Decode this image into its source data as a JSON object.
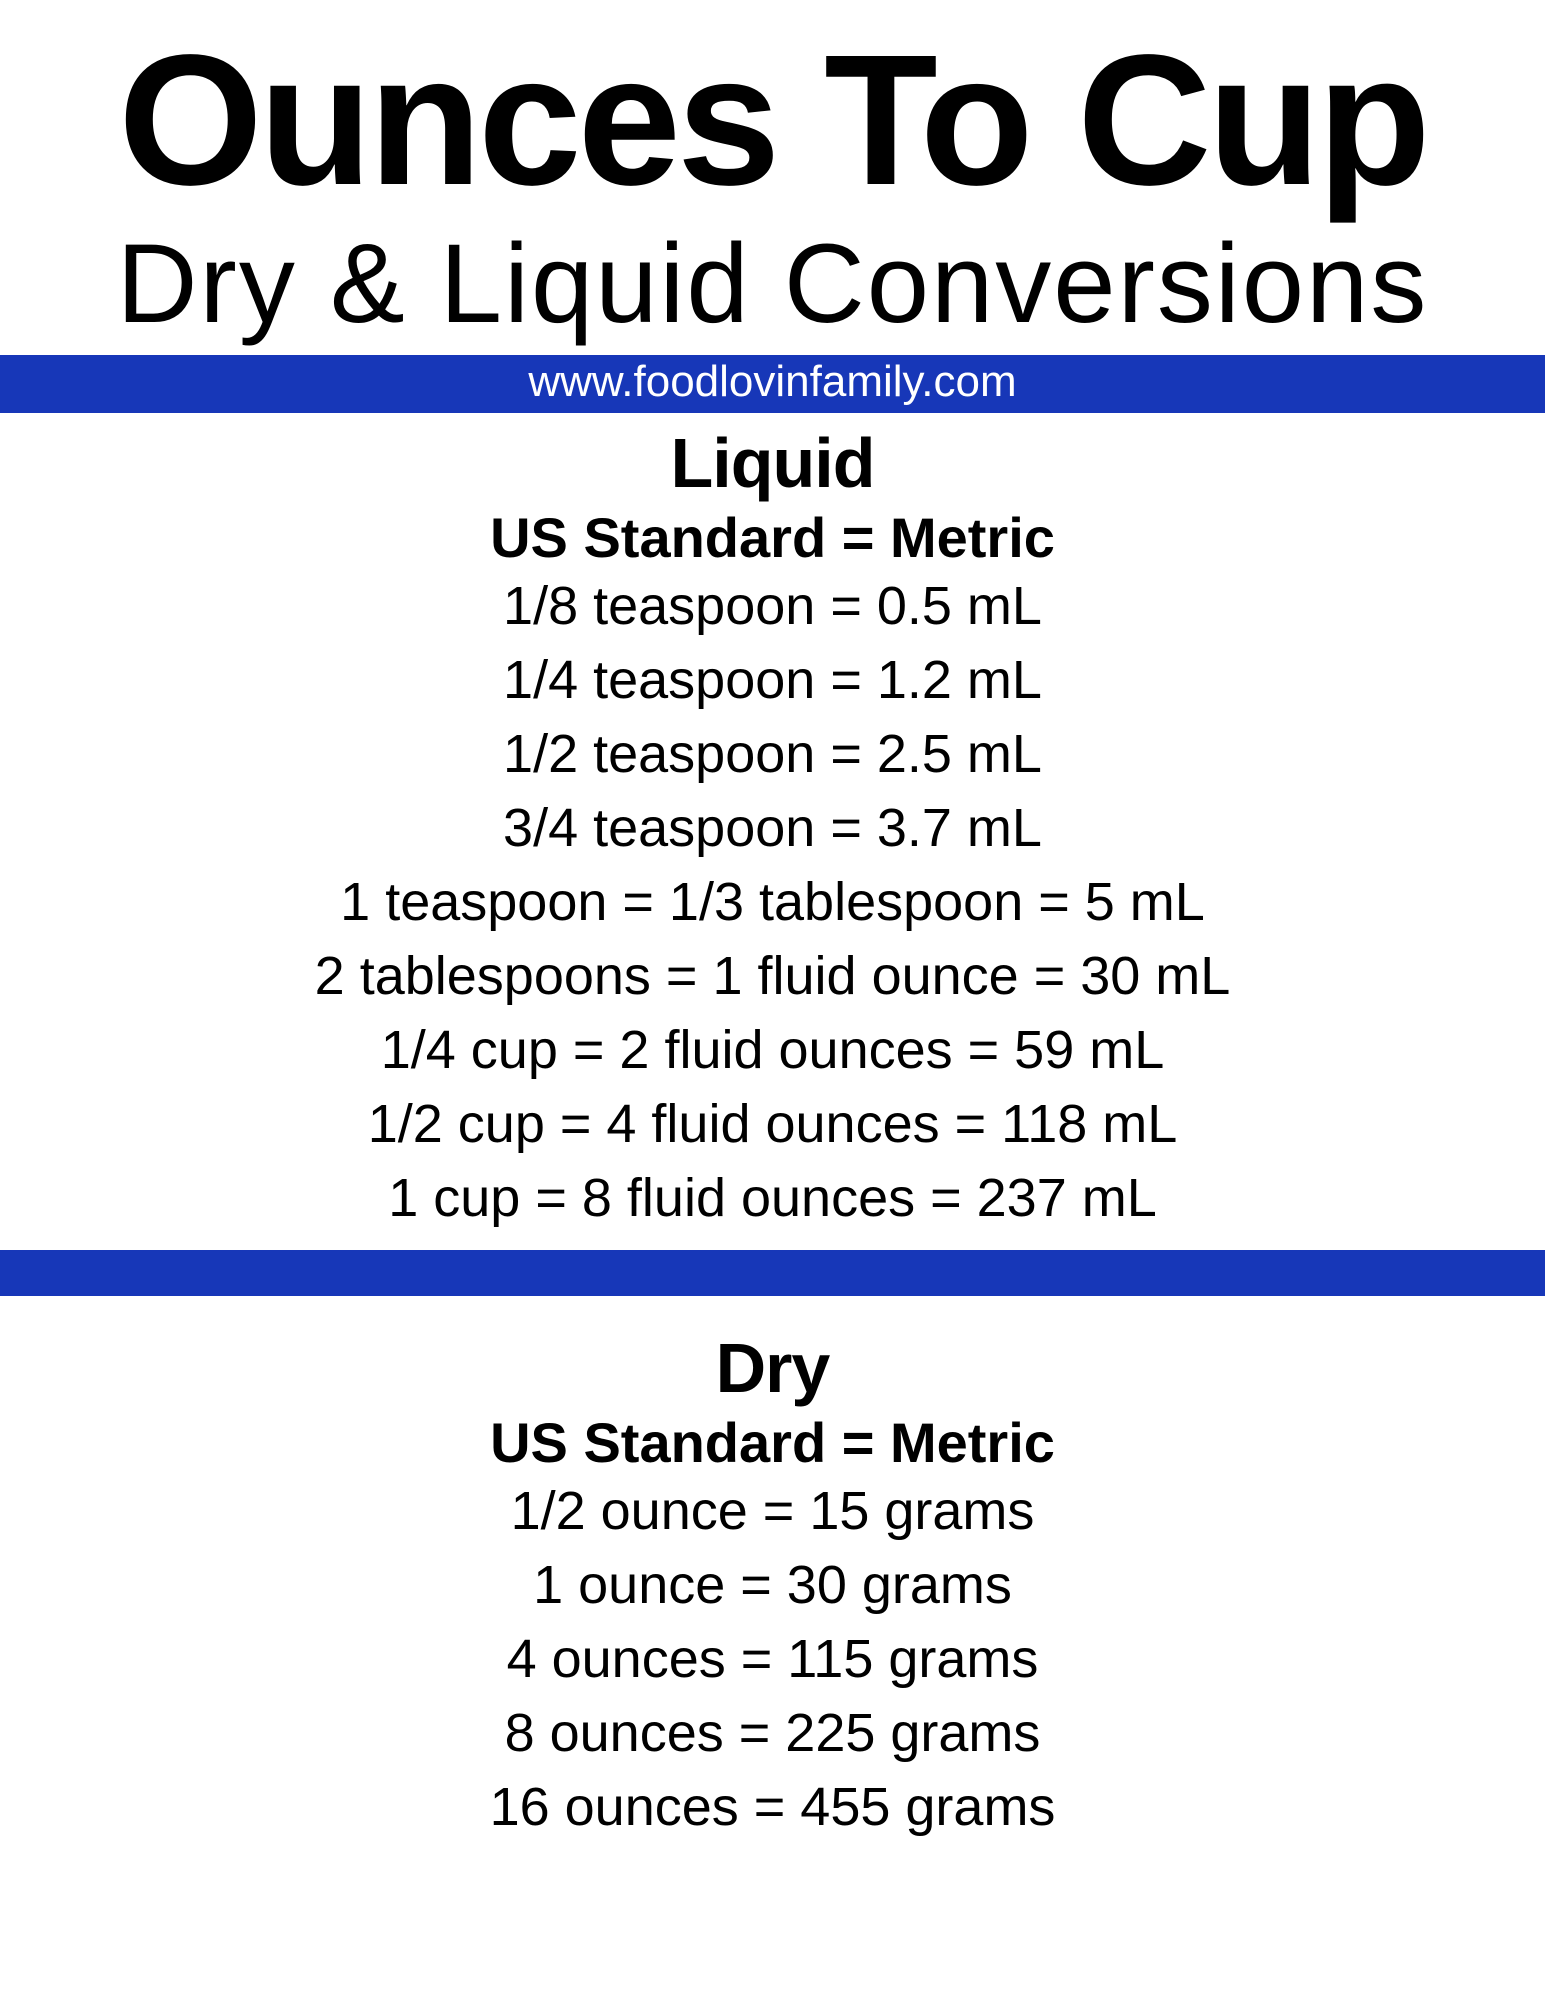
{
  "title": "Ounces To Cup",
  "subtitle": "Dry & Liquid Conversions",
  "url": "www.foodlovinfamily.com",
  "colors": {
    "bar_background": "#1737b8",
    "bar_text": "#ffffff",
    "page_background": "#ffffff",
    "text": "#000000"
  },
  "liquid": {
    "title": "Liquid",
    "header": "US Standard = Metric",
    "rows": [
      "1/8 teaspoon = 0.5 mL",
      "1/4 teaspoon = 1.2 mL",
      "1/2 teaspoon = 2.5 mL",
      "3/4 teaspoon = 3.7 mL",
      "1 teaspoon = 1/3 tablespoon = 5 mL",
      "2 tablespoons = 1 fluid ounce = 30 mL",
      "1/4 cup = 2 fluid ounces = 59 mL",
      "1/2 cup = 4 fluid ounces = 118 mL",
      "1 cup = 8 fluid ounces = 237 mL"
    ]
  },
  "dry": {
    "title": "Dry",
    "header": "US Standard = Metric",
    "rows": [
      "1/2 ounce = 15 grams",
      "1 ounce = 30 grams",
      "4 ounces = 115 grams",
      "8 ounces = 225 grams",
      "16 ounces = 455 grams"
    ]
  }
}
